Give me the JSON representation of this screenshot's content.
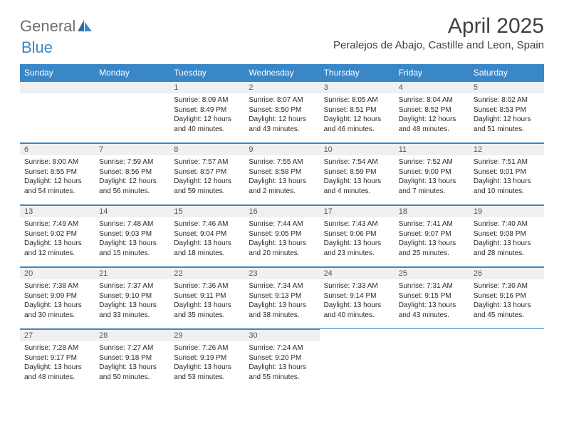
{
  "brand": {
    "general": "General",
    "blue": "Blue"
  },
  "header": {
    "month_title": "April 2025",
    "location": "Peralejos de Abajo, Castille and Leon, Spain"
  },
  "calendar": {
    "header_bg": "#3a87c8",
    "header_fg": "#ffffff",
    "daynum_bg": "#eef0f1",
    "border_color": "#3a87c8",
    "columns": [
      "Sunday",
      "Monday",
      "Tuesday",
      "Wednesday",
      "Thursday",
      "Friday",
      "Saturday"
    ],
    "weeks": [
      [
        null,
        null,
        {
          "n": "1",
          "sr": "8:09 AM",
          "ss": "8:49 PM",
          "dl": "12 hours and 40 minutes."
        },
        {
          "n": "2",
          "sr": "8:07 AM",
          "ss": "8:50 PM",
          "dl": "12 hours and 43 minutes."
        },
        {
          "n": "3",
          "sr": "8:05 AM",
          "ss": "8:51 PM",
          "dl": "12 hours and 46 minutes."
        },
        {
          "n": "4",
          "sr": "8:04 AM",
          "ss": "8:52 PM",
          "dl": "12 hours and 48 minutes."
        },
        {
          "n": "5",
          "sr": "8:02 AM",
          "ss": "8:53 PM",
          "dl": "12 hours and 51 minutes."
        }
      ],
      [
        {
          "n": "6",
          "sr": "8:00 AM",
          "ss": "8:55 PM",
          "dl": "12 hours and 54 minutes."
        },
        {
          "n": "7",
          "sr": "7:59 AM",
          "ss": "8:56 PM",
          "dl": "12 hours and 56 minutes."
        },
        {
          "n": "8",
          "sr": "7:57 AM",
          "ss": "8:57 PM",
          "dl": "12 hours and 59 minutes."
        },
        {
          "n": "9",
          "sr": "7:55 AM",
          "ss": "8:58 PM",
          "dl": "13 hours and 2 minutes."
        },
        {
          "n": "10",
          "sr": "7:54 AM",
          "ss": "8:59 PM",
          "dl": "13 hours and 4 minutes."
        },
        {
          "n": "11",
          "sr": "7:52 AM",
          "ss": "9:00 PM",
          "dl": "13 hours and 7 minutes."
        },
        {
          "n": "12",
          "sr": "7:51 AM",
          "ss": "9:01 PM",
          "dl": "13 hours and 10 minutes."
        }
      ],
      [
        {
          "n": "13",
          "sr": "7:49 AM",
          "ss": "9:02 PM",
          "dl": "13 hours and 12 minutes."
        },
        {
          "n": "14",
          "sr": "7:48 AM",
          "ss": "9:03 PM",
          "dl": "13 hours and 15 minutes."
        },
        {
          "n": "15",
          "sr": "7:46 AM",
          "ss": "9:04 PM",
          "dl": "13 hours and 18 minutes."
        },
        {
          "n": "16",
          "sr": "7:44 AM",
          "ss": "9:05 PM",
          "dl": "13 hours and 20 minutes."
        },
        {
          "n": "17",
          "sr": "7:43 AM",
          "ss": "9:06 PM",
          "dl": "13 hours and 23 minutes."
        },
        {
          "n": "18",
          "sr": "7:41 AM",
          "ss": "9:07 PM",
          "dl": "13 hours and 25 minutes."
        },
        {
          "n": "19",
          "sr": "7:40 AM",
          "ss": "9:08 PM",
          "dl": "13 hours and 28 minutes."
        }
      ],
      [
        {
          "n": "20",
          "sr": "7:38 AM",
          "ss": "9:09 PM",
          "dl": "13 hours and 30 minutes."
        },
        {
          "n": "21",
          "sr": "7:37 AM",
          "ss": "9:10 PM",
          "dl": "13 hours and 33 minutes."
        },
        {
          "n": "22",
          "sr": "7:36 AM",
          "ss": "9:11 PM",
          "dl": "13 hours and 35 minutes."
        },
        {
          "n": "23",
          "sr": "7:34 AM",
          "ss": "9:13 PM",
          "dl": "13 hours and 38 minutes."
        },
        {
          "n": "24",
          "sr": "7:33 AM",
          "ss": "9:14 PM",
          "dl": "13 hours and 40 minutes."
        },
        {
          "n": "25",
          "sr": "7:31 AM",
          "ss": "9:15 PM",
          "dl": "13 hours and 43 minutes."
        },
        {
          "n": "26",
          "sr": "7:30 AM",
          "ss": "9:16 PM",
          "dl": "13 hours and 45 minutes."
        }
      ],
      [
        {
          "n": "27",
          "sr": "7:28 AM",
          "ss": "9:17 PM",
          "dl": "13 hours and 48 minutes."
        },
        {
          "n": "28",
          "sr": "7:27 AM",
          "ss": "9:18 PM",
          "dl": "13 hours and 50 minutes."
        },
        {
          "n": "29",
          "sr": "7:26 AM",
          "ss": "9:19 PM",
          "dl": "13 hours and 53 minutes."
        },
        {
          "n": "30",
          "sr": "7:24 AM",
          "ss": "9:20 PM",
          "dl": "13 hours and 55 minutes."
        },
        null,
        null,
        null
      ]
    ],
    "labels": {
      "sunrise": "Sunrise:",
      "sunset": "Sunset:",
      "daylight": "Daylight:"
    }
  }
}
